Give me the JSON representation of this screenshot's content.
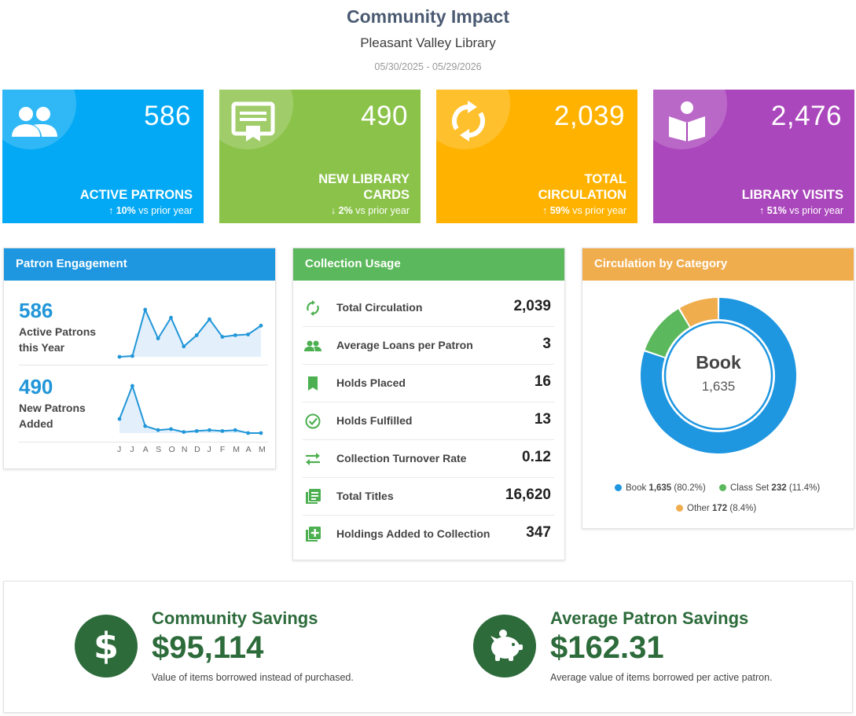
{
  "header": {
    "title": "Community Impact",
    "library": "Pleasant Valley Library",
    "date_range": "05/30/2025 - 05/29/2026"
  },
  "stats": [
    {
      "value": "586",
      "label_lines": [
        "ACTIVE PATRONS"
      ],
      "change": "10%",
      "direction": "↑",
      "suffix": "vs prior year",
      "color": "#03a9f4",
      "icon": "people-icon"
    },
    {
      "value": "490",
      "label_lines": [
        "NEW LIBRARY",
        "CARDS"
      ],
      "change": "2%",
      "direction": "↓",
      "suffix": "vs prior year",
      "color": "#8bc34a",
      "icon": "library-card-icon"
    },
    {
      "value": "2,039",
      "label_lines": [
        "TOTAL",
        "CIRCULATION"
      ],
      "change": "59%",
      "direction": "↑",
      "suffix": "vs prior year",
      "color": "#ffb300",
      "icon": "sync-icon"
    },
    {
      "value": "2,476",
      "label_lines": [
        "LIBRARY VISITS"
      ],
      "change": "51%",
      "direction": "↑",
      "suffix": "vs prior year",
      "color": "#ab47bc",
      "icon": "reader-icon"
    }
  ],
  "engagement": {
    "title": "Patron Engagement",
    "header_color": "#1e96e0",
    "rows": [
      {
        "value": "586",
        "label_lines": [
          "Active Patrons",
          "this Year"
        ],
        "series": [
          1,
          2,
          60,
          24,
          50,
          14,
          28,
          48,
          26,
          28,
          29,
          40
        ]
      },
      {
        "value": "490",
        "label_lines": [
          "New Patrons",
          "Added"
        ],
        "series": [
          14,
          47,
          7,
          3,
          4,
          1,
          2,
          3,
          2,
          3,
          0,
          0
        ]
      }
    ],
    "months": [
      "J",
      "J",
      "A",
      "S",
      "O",
      "N",
      "D",
      "J",
      "F",
      "M",
      "A",
      "M"
    ]
  },
  "collection": {
    "title": "Collection Usage",
    "header_color": "#5cb85c",
    "rows": [
      {
        "label": "Total Circulation",
        "value": "2,039",
        "icon": "sync-icon"
      },
      {
        "label": "Average Loans per Patron",
        "value": "3",
        "icon": "people-icon"
      },
      {
        "label": "Holds Placed",
        "value": "16",
        "icon": "bookmark-icon"
      },
      {
        "label": "Holds Fulfilled",
        "value": "13",
        "icon": "check-circle-icon"
      },
      {
        "label": "Collection Turnover Rate",
        "value": "0.12",
        "icon": "swap-arrows-icon"
      },
      {
        "label": "Total Titles",
        "value": "16,620",
        "icon": "library-books-icon"
      },
      {
        "label": "Holdings Added to Collection",
        "value": "347",
        "icon": "add-box-icon"
      }
    ]
  },
  "category": {
    "title": "Circulation by Category",
    "header_color": "#f0ad4e",
    "center_label": "Book",
    "center_value": "1,635",
    "slices": [
      {
        "name": "Book",
        "value": 1635,
        "value_text": "1,635",
        "pct": "(80.2%)",
        "color": "#1e96e0"
      },
      {
        "name": "Class Set",
        "value": 232,
        "value_text": "232",
        "pct": "(11.4%)",
        "color": "#5cb85c"
      },
      {
        "name": "Other",
        "value": 172,
        "value_text": "172",
        "pct": "(8.4%)",
        "color": "#f0ad4e"
      }
    ]
  },
  "savings": [
    {
      "title": "Community Savings",
      "amount": "$95,114",
      "desc": "Value of items borrowed instead of purchased.",
      "icon": "dollar-icon"
    },
    {
      "title": "Average Patron Savings",
      "amount": "$162.31",
      "desc": "Average value of items borrowed per active patron.",
      "icon": "piggy-bank-icon"
    }
  ]
}
